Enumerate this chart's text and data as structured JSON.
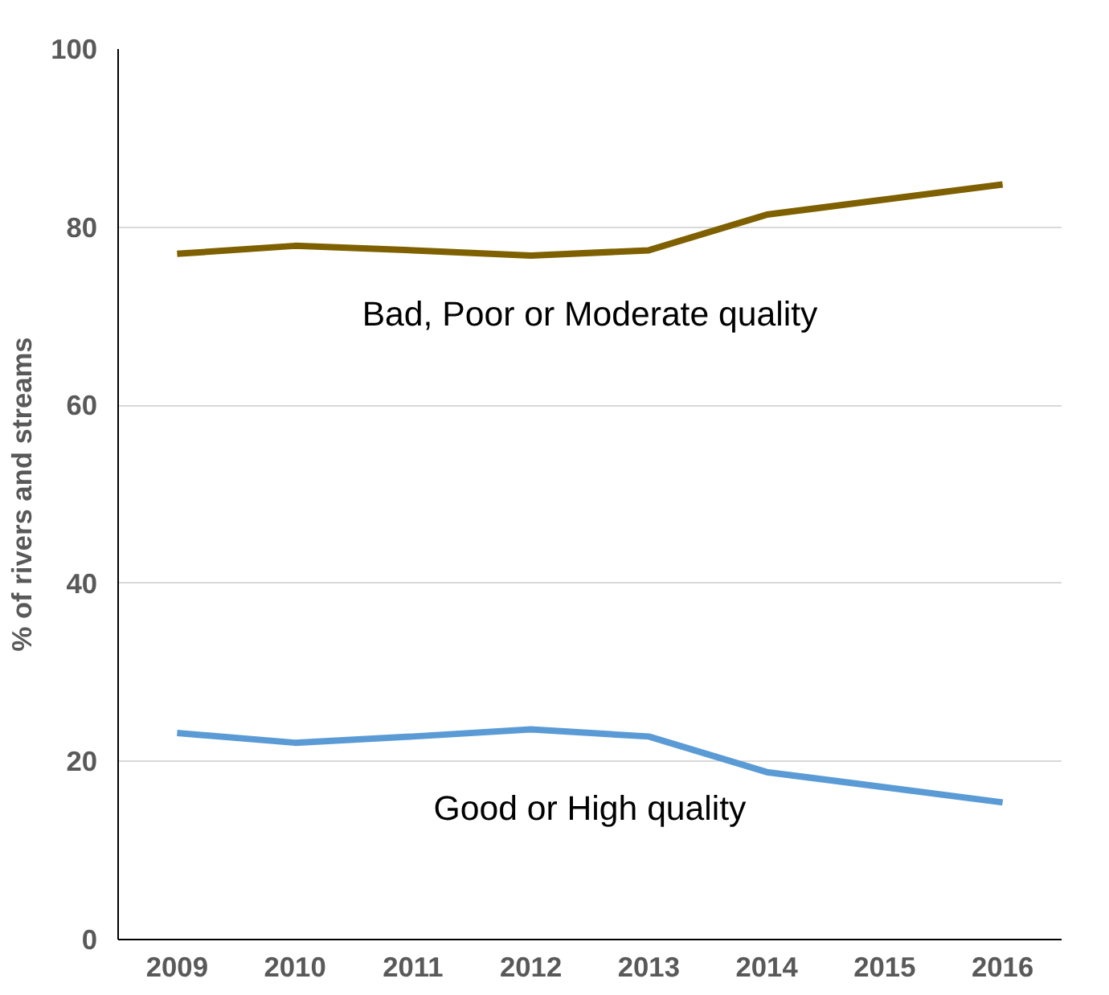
{
  "chart_data": {
    "type": "line",
    "ylabel": "% of rivers and streams",
    "categories": [
      "2009",
      "2010",
      "2011",
      "2012",
      "2013",
      "2014",
      "2015",
      "2016"
    ],
    "series": [
      {
        "name": "Bad, Poor or Moderate quality",
        "color": "#7f6000",
        "values": [
          77.0,
          77.9,
          77.4,
          76.8,
          77.4,
          81.4,
          83.1,
          84.8
        ]
      },
      {
        "name": "Good or High quality",
        "color": "#5b9bd5",
        "values": [
          23.2,
          22.1,
          22.8,
          23.6,
          22.8,
          18.8,
          17.1,
          15.4
        ]
      }
    ],
    "ylim": [
      0,
      100
    ],
    "yticks": [
      0,
      20,
      40,
      60,
      80,
      100
    ],
    "grid": "y"
  }
}
